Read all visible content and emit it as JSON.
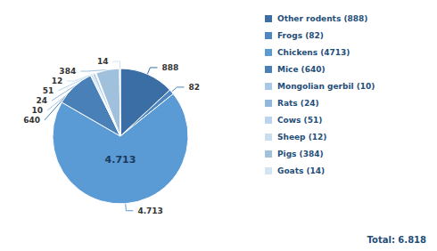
{
  "chart_data": {
    "type": "pie",
    "categories": [
      "Other rodents (888)",
      "Frogs (82)",
      "Chickens (4713)",
      "Mice (640)",
      "Mongolian gerbil (10)",
      "Rats (24)",
      "Cows (51)",
      "Sheep (12)",
      "Pigs (384)",
      "Goats (14)"
    ],
    "values": [
      888,
      82,
      4713,
      640,
      10,
      24,
      51,
      12,
      384,
      14
    ],
    "value_labels": [
      "888",
      "82",
      "4.713",
      "640",
      "10",
      "24",
      "51",
      "12",
      "384",
      "14"
    ],
    "colors": [
      "#3A6EA5",
      "#4D86C0",
      "#5B9BD5",
      "#4A80B8",
      "#A8C8E8",
      "#90B8DC",
      "#B8D4EE",
      "#C8DEEF",
      "#A0C0DC",
      "#D0E4F4"
    ],
    "annotations": [
      "4.713",
      "Total: 6.818"
    ],
    "data_labels": true,
    "legend": "right"
  }
}
